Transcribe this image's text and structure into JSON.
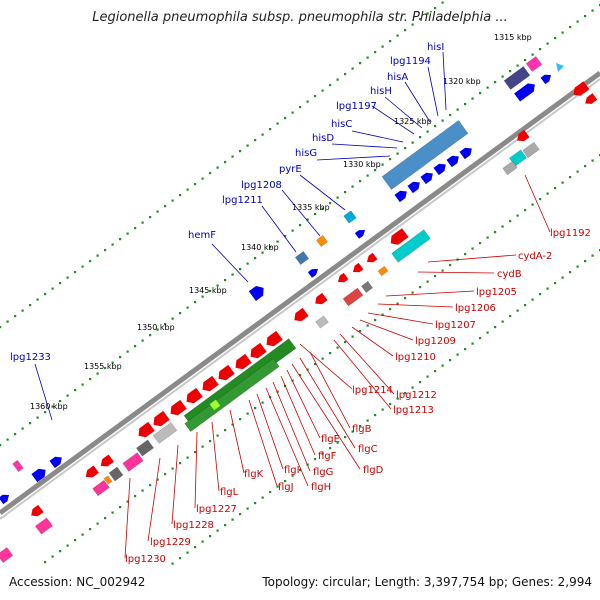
{
  "title": "Legionella pneumophila subsp. pneumophila str. Philadelphia ...",
  "footer": {
    "accession": "Accession: NC_002942",
    "summary": "Topology: circular; Length: 3,397,754 bp; Genes: 2,994"
  },
  "colors": {
    "backbone": "#808080",
    "tick_dots": "#228b22",
    "forward_label": "#0000bb",
    "reverse_label": "#cc0000",
    "blue_gene": "#0000ee",
    "red_gene": "#ee0000",
    "green_gene": "#228b22",
    "cyan_gene": "#00cccc"
  },
  "scale_labels": [
    "1315 kbp",
    "1320 kbp",
    "1325 kbp",
    "1330 kbp",
    "1335 kbp",
    "1340 kbp",
    "1345 kbp",
    "1350 kbp",
    "1355 kbp",
    "1360 kbp"
  ],
  "forward_labels": [
    "hisI",
    "lpg1194",
    "hisA",
    "hisH",
    "lpg1197",
    "hisC",
    "hisD",
    "hisG",
    "pyrE",
    "lpg1208",
    "lpg1211",
    "hemF",
    "lpg1233"
  ],
  "reverse_labels": [
    "lpg1192",
    "cydA-2",
    "cydB",
    "lpg1205",
    "lpg1206",
    "lpg1207",
    "lpg1209",
    "lpg1210",
    "lpg1214",
    "lpg1212",
    "lpg1213",
    "flgB",
    "flgC",
    "flgD",
    "flgE",
    "flgF",
    "flgG",
    "flgH",
    "flgI",
    "flgJ",
    "flgK",
    "flgL",
    "lpg1227",
    "lpg1228",
    "lpg1229",
    "lpg1230"
  ]
}
